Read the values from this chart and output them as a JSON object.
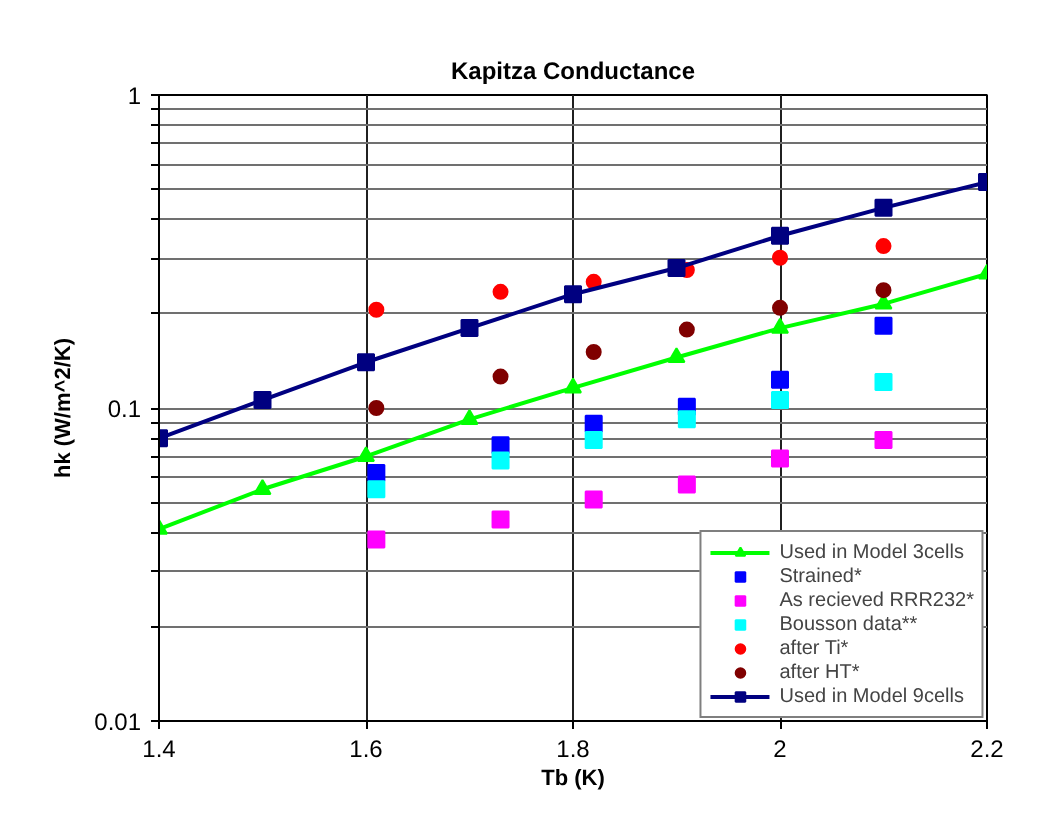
{
  "chart_data": {
    "type": "scatter",
    "title": "Kapitza Conductance",
    "xlabel": "Tb (K)",
    "ylabel": "hk (W/m^2/K)",
    "log": "y",
    "xlim": [
      1.4,
      2.2
    ],
    "ylim": [
      0.01,
      1
    ],
    "xticks": [
      1.4,
      1.6,
      1.8,
      2,
      2.2
    ],
    "yticks": [
      0.01,
      {
        "value": 0.02,
        "label": null
      },
      {
        "value": 0.03,
        "label": null
      },
      {
        "value": 0.04,
        "label": null
      },
      {
        "value": 0.05,
        "label": null
      },
      {
        "value": 0.06,
        "label": null
      },
      {
        "value": 0.07,
        "label": null
      },
      {
        "value": 0.08,
        "label": null
      },
      {
        "value": 0.09,
        "label": null
      },
      0.1,
      {
        "value": 0.2,
        "label": null
      },
      {
        "value": 0.3,
        "label": null
      },
      {
        "value": 0.4,
        "label": null
      },
      {
        "value": 0.5,
        "label": null
      },
      {
        "value": 0.6,
        "label": null
      },
      {
        "value": 0.7,
        "label": null
      },
      {
        "value": 0.8,
        "label": null
      },
      {
        "value": 0.9,
        "label": null
      },
      1
    ],
    "grid": true,
    "legend": "bottom right",
    "series": [
      {
        "name": "Used in Model 3cells",
        "type": "line",
        "marker": "triangle",
        "color": "#00ff00",
        "x": [
          1.4,
          1.5,
          1.6,
          1.7,
          1.8,
          1.9,
          2.0,
          2.1,
          2.2
        ],
        "values": [
          0.041,
          0.055,
          0.07,
          0.092,
          0.116,
          0.145,
          0.18,
          0.215,
          0.268
        ]
      },
      {
        "name": "Strained*",
        "marker": "square",
        "color": "#0000ff",
        "x": [
          1.61,
          1.73,
          1.82,
          1.91,
          2.0,
          2.1
        ],
        "values": [
          0.062,
          0.076,
          0.089,
          0.101,
          0.123,
          0.183
        ]
      },
      {
        "name": "As recieved RRR232*",
        "marker": "square",
        "color": "#ff00ff",
        "x": [
          1.61,
          1.73,
          1.82,
          1.91,
          2.0,
          2.1
        ],
        "values": [
          0.038,
          0.044,
          0.051,
          0.057,
          0.069,
          0.079
        ]
      },
      {
        "name": "Bousson data**",
        "marker": "square",
        "color": "#00ffff",
        "x": [
          1.61,
          1.73,
          1.82,
          1.91,
          2.0,
          2.1
        ],
        "values": [
          0.055,
          0.068,
          0.079,
          0.092,
          0.106,
          0.121
        ]
      },
      {
        "name": "after Ti*",
        "marker": "circle",
        "color": "#ff0000",
        "x": [
          1.61,
          1.73,
          1.82,
          1.91,
          2.0,
          2.1
        ],
        "values": [
          0.206,
          0.235,
          0.253,
          0.276,
          0.302,
          0.329
        ]
      },
      {
        "name": "after HT*",
        "marker": "circle",
        "color": "#800000",
        "x": [
          1.61,
          1.73,
          1.82,
          1.91,
          2.0,
          2.1
        ],
        "values": [
          0.1,
          0.126,
          0.151,
          0.178,
          0.209,
          0.238
        ]
      },
      {
        "name": "Used in Model 9cells",
        "type": "line",
        "marker": "square",
        "color": "#000080",
        "x": [
          1.4,
          1.5,
          1.6,
          1.7,
          1.8,
          1.9,
          2.0,
          2.1,
          2.2
        ],
        "values": [
          0.08,
          0.106,
          0.14,
          0.18,
          0.231,
          0.28,
          0.355,
          0.436,
          0.527
        ]
      }
    ]
  }
}
